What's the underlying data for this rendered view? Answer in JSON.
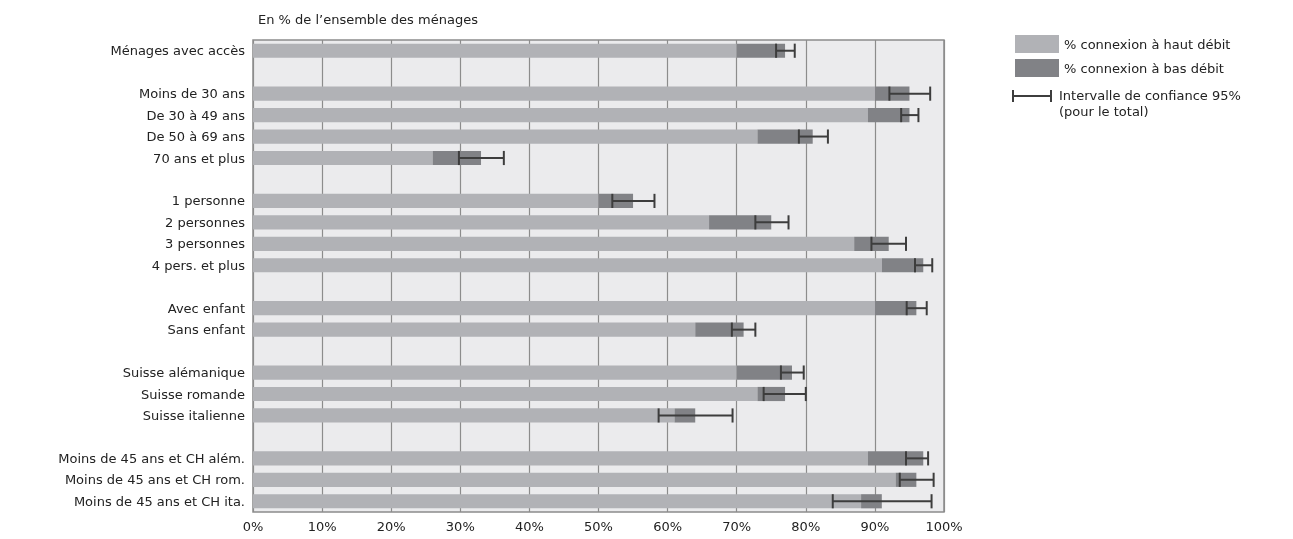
{
  "chart_data": {
    "type": "bar",
    "orientation": "horizontal",
    "stacked": true,
    "title": "En % de l’ensemble des ménages",
    "categories": [
      "Ménages avec accès",
      null,
      "Moins de 30 ans",
      "De 30 à 49 ans",
      "De 50 à 69 ans",
      "70 ans et plus",
      null,
      "1 personne",
      "2 personnes",
      "3 personnes",
      "4 pers. et plus",
      null,
      "Avec enfant",
      "Sans enfant",
      null,
      "Suisse alémanique",
      "Suisse romande",
      "Suisse italienne",
      null,
      "Moins de 45 ans et CH além.",
      "Moins de 45 ans et CH rom.",
      "Moins de 45 ans et CH ita."
    ],
    "series": [
      {
        "name": "% connexion à haut débit",
        "color": "#b1b2b6",
        "values": [
          70,
          null,
          90,
          89,
          73,
          26,
          null,
          50,
          66,
          87,
          91,
          null,
          90,
          64,
          null,
          70,
          73,
          61,
          null,
          89,
          93,
          88
        ]
      },
      {
        "name": "% connexion à bas débit",
        "color": "#818286",
        "values": [
          7,
          null,
          5,
          6,
          8,
          7,
          null,
          5,
          9,
          5,
          6,
          null,
          6,
          7,
          null,
          8,
          4,
          3,
          null,
          8,
          3,
          3
        ],
        "errors": [
          [
            75.7,
            78.4
          ],
          null,
          [
            92.1,
            98
          ],
          [
            93.8,
            96.3
          ],
          [
            79,
            83.2
          ],
          [
            29.8,
            36.3
          ],
          null,
          [
            52,
            58.1
          ],
          [
            72.7,
            77.5
          ],
          [
            89.5,
            94.5
          ],
          [
            95.8,
            98.3
          ],
          null,
          [
            94.6,
            97.5
          ],
          [
            69.3,
            72.7
          ],
          null,
          [
            76.4,
            79.7
          ],
          [
            73.9,
            80
          ],
          [
            58.7,
            69.4
          ],
          null,
          [
            94.5,
            97.7
          ],
          [
            93.6,
            98.5
          ],
          [
            83.9,
            98.2
          ]
        ]
      }
    ],
    "annotations": [
      "Intervalle de confiance 95%\n(pour le total)"
    ],
    "xlim": [
      0,
      100
    ],
    "xticks": [
      {
        "value": 0,
        "label": "0%"
      },
      {
        "value": 10,
        "label": "10%"
      },
      {
        "value": 20,
        "label": "20%"
      },
      {
        "value": 30,
        "label": "30%"
      },
      {
        "value": 40,
        "label": "40%"
      },
      {
        "value": 50,
        "label": "50%"
      },
      {
        "value": 60,
        "label": "60%"
      },
      {
        "value": 70,
        "label": "70%"
      },
      {
        "value": 80,
        "label": "80%"
      },
      {
        "value": 90,
        "label": "90%"
      },
      {
        "value": 100,
        "label": "100%"
      }
    ],
    "grid": "x",
    "legend": "right"
  }
}
